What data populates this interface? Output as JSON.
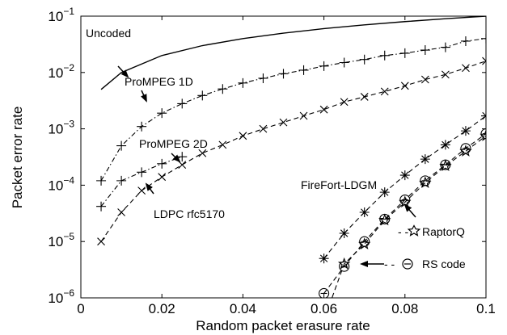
{
  "chart_data": {
    "type": "line",
    "title": "",
    "xlabel": "Random packet erasure rate",
    "ylabel": "Packet error rate",
    "xlim": [
      0,
      0.1
    ],
    "ylim": [
      1e-06,
      0.1
    ],
    "y_scale": "log",
    "grid": false,
    "x_ticks": [
      {
        "value": 0,
        "label": "0"
      },
      {
        "value": 0.02,
        "label": "0.02"
      },
      {
        "value": 0.04,
        "label": "0.04"
      },
      {
        "value": 0.06,
        "label": "0.06"
      },
      {
        "value": 0.08,
        "label": "0.08"
      },
      {
        "value": 0.1,
        "label": "0.1"
      }
    ],
    "y_ticks": [
      {
        "value": 1e-06,
        "base": "10",
        "exp": "−6"
      },
      {
        "value": 1e-05,
        "base": "10",
        "exp": "−5"
      },
      {
        "value": 0.0001,
        "base": "10",
        "exp": "−4"
      },
      {
        "value": 0.001,
        "base": "10",
        "exp": "−3"
      },
      {
        "value": 0.01,
        "base": "10",
        "exp": "−2"
      },
      {
        "value": 0.1,
        "base": "10",
        "exp": "−1"
      }
    ],
    "series": [
      {
        "name": "Uncoded",
        "line": "solid",
        "marker": "none",
        "x": [
          0.005,
          0.01,
          0.02,
          0.03,
          0.04,
          0.05,
          0.06,
          0.07,
          0.08,
          0.09,
          0.1
        ],
        "y": [
          0.005,
          0.01,
          0.02,
          0.03,
          0.04,
          0.05,
          0.06,
          0.07,
          0.08,
          0.09,
          0.1
        ]
      },
      {
        "name": "ProMPEG 1D",
        "line": "dashdot",
        "marker": "plus",
        "x": [
          0.005,
          0.01,
          0.015,
          0.02,
          0.025,
          0.03,
          0.035,
          0.04,
          0.045,
          0.05,
          0.055,
          0.06,
          0.065,
          0.07,
          0.075,
          0.08,
          0.085,
          0.09,
          0.095,
          0.1
        ],
        "y": [
          0.00012,
          0.0005,
          0.0011,
          0.0019,
          0.0028,
          0.0039,
          0.0051,
          0.0065,
          0.0079,
          0.0095,
          0.011,
          0.013,
          0.015,
          0.017,
          0.02,
          0.022,
          0.025,
          0.028,
          0.036,
          0.04
        ]
      },
      {
        "name": "ProMPEG 2D",
        "line": "dashdot",
        "marker": "plus",
        "x": [
          0.005,
          0.01,
          0.015,
          0.02,
          0.025
        ],
        "y": [
          4.2e-05,
          0.00012,
          0.00017,
          0.00024,
          0.00032
        ]
      },
      {
        "name": "LDPC rfc5170",
        "line": "dashed",
        "marker": "cross",
        "x": [
          0.005,
          0.01,
          0.015,
          0.02,
          0.025,
          0.03,
          0.035,
          0.04,
          0.045,
          0.05,
          0.055,
          0.06,
          0.065,
          0.07,
          0.075,
          0.08,
          0.085,
          0.09,
          0.095,
          0.1
        ],
        "y": [
          1e-05,
          3.3e-05,
          8e-05,
          0.00014,
          0.00023,
          0.00037,
          0.00052,
          0.00075,
          0.001,
          0.0013,
          0.0017,
          0.0022,
          0.003,
          0.0037,
          0.0046,
          0.0058,
          0.0075,
          0.0092,
          0.012,
          0.016
        ]
      },
      {
        "name": "FireFort-LDGM",
        "line": "dashed",
        "marker": "asterisk",
        "x": [
          0.06,
          0.065,
          0.07,
          0.075,
          0.08,
          0.085,
          0.09,
          0.095,
          0.1
        ],
        "y": [
          5e-06,
          1.4e-05,
          3.3e-05,
          7.5e-05,
          0.00015,
          0.00029,
          0.00052,
          0.00092,
          0.0017
        ]
      },
      {
        "name": "RaptorQ",
        "line": "dashed",
        "marker": "star",
        "x": [
          0.06,
          0.065,
          0.07,
          0.075,
          0.08,
          0.085,
          0.09,
          0.095,
          0.1
        ],
        "y": [
          4e-07,
          4e-06,
          9e-06,
          2.4e-05,
          5e-05,
          0.00011,
          0.00022,
          0.0004,
          0.00075
        ]
      },
      {
        "name": "RS code",
        "line": "dashed",
        "marker": "circle",
        "x": [
          0.06,
          0.065,
          0.07,
          0.075,
          0.08,
          0.085,
          0.09,
          0.095,
          0.1
        ],
        "y": [
          1.2e-06,
          3.6e-06,
          1e-05,
          2.5e-05,
          5.5e-05,
          0.00012,
          0.00023,
          0.00045,
          0.00082
        ]
      }
    ],
    "annotations": [
      {
        "text": "Uncoded",
        "series": "Uncoded"
      },
      {
        "text": "ProMPEG 1D",
        "series": "ProMPEG 1D"
      },
      {
        "text": "ProMPEG 2D",
        "series": "ProMPEG 2D"
      },
      {
        "text": "LDPC rfc5170",
        "series": "LDPC rfc5170"
      },
      {
        "text": "FireFort-LDGM",
        "series": "FireFort-LDGM"
      },
      {
        "text": "RaptorQ",
        "series": "RaptorQ"
      },
      {
        "text": "RS code",
        "series": "RS code"
      }
    ]
  }
}
